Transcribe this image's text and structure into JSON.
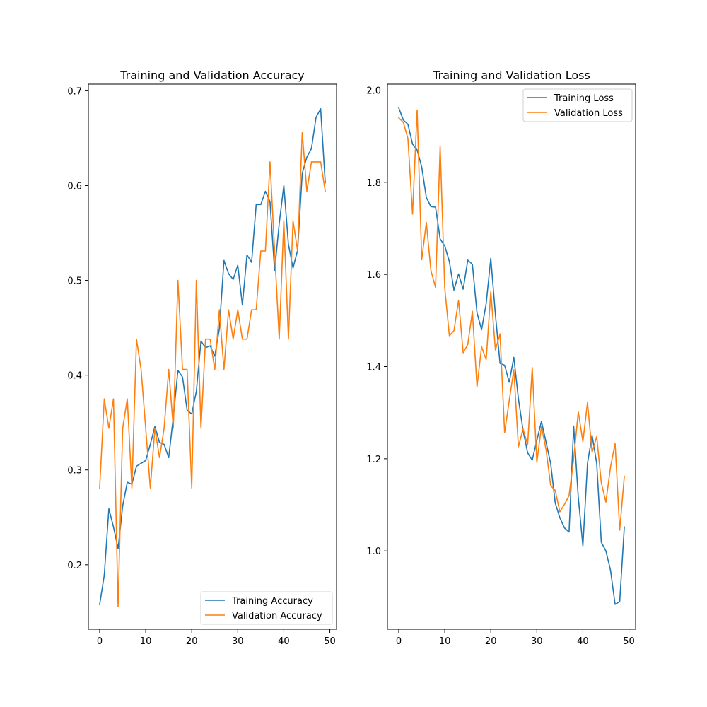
{
  "chart_data": [
    {
      "type": "line",
      "title": "Training and Validation Accuracy",
      "xlabel": "",
      "ylabel": "",
      "xlim": [
        -2.45,
        51.45
      ],
      "ylim": [
        0.132,
        0.707
      ],
      "xticks": [
        0,
        10,
        20,
        30,
        40,
        50
      ],
      "yticks": [
        0.2,
        0.3,
        0.4,
        0.5,
        0.6,
        0.7
      ],
      "xtick_labels": [
        "0",
        "10",
        "20",
        "30",
        "40",
        "50"
      ],
      "ytick_labels": [
        "0.2",
        "0.3",
        "0.4",
        "0.5",
        "0.6",
        "0.7"
      ],
      "grid": false,
      "legend_position": "lower-right",
      "colors": [
        "#1f77b4",
        "#ff7f0e"
      ],
      "x": [
        0,
        1,
        2,
        3,
        4,
        5,
        6,
        7,
        8,
        9,
        10,
        11,
        12,
        13,
        14,
        15,
        16,
        17,
        18,
        19,
        20,
        21,
        22,
        23,
        24,
        25,
        26,
        27,
        28,
        29,
        30,
        31,
        32,
        33,
        34,
        35,
        36,
        37,
        38,
        39,
        40,
        41,
        42,
        43,
        44,
        45,
        46,
        47,
        48,
        49
      ],
      "series": [
        {
          "name": "Training Accuracy",
          "values": [
            0.158,
            0.189,
            0.259,
            0.24,
            0.217,
            0.262,
            0.287,
            0.285,
            0.304,
            0.307,
            0.31,
            0.327,
            0.346,
            0.329,
            0.327,
            0.313,
            0.356,
            0.405,
            0.398,
            0.363,
            0.359,
            0.383,
            0.436,
            0.429,
            0.431,
            0.42,
            0.449,
            0.521,
            0.507,
            0.501,
            0.516,
            0.474,
            0.527,
            0.519,
            0.58,
            0.58,
            0.594,
            0.583,
            0.51,
            0.56,
            0.6,
            0.538,
            0.513,
            0.532,
            0.613,
            0.63,
            0.639,
            0.672,
            0.681,
            0.603
          ]
        },
        {
          "name": "Validation Accuracy",
          "values": [
            0.281,
            0.375,
            0.344,
            0.375,
            0.156,
            0.344,
            0.375,
            0.281,
            0.438,
            0.406,
            0.344,
            0.281,
            0.344,
            0.313,
            0.344,
            0.406,
            0.344,
            0.5,
            0.406,
            0.406,
            0.281,
            0.5,
            0.344,
            0.438,
            0.438,
            0.406,
            0.469,
            0.406,
            0.469,
            0.438,
            0.469,
            0.438,
            0.438,
            0.469,
            0.469,
            0.531,
            0.531,
            0.625,
            0.531,
            0.438,
            0.563,
            0.438,
            0.563,
            0.531,
            0.656,
            0.594,
            0.625,
            0.625,
            0.625,
            0.594
          ]
        }
      ]
    },
    {
      "type": "line",
      "title": "Training and Validation Loss",
      "xlabel": "",
      "ylabel": "",
      "xlim": [
        -2.45,
        51.45
      ],
      "ylim": [
        0.83,
        2.013
      ],
      "xticks": [
        0,
        10,
        20,
        30,
        40,
        50
      ],
      "yticks": [
        1.0,
        1.2,
        1.4,
        1.6,
        1.8,
        2.0
      ],
      "xtick_labels": [
        "0",
        "10",
        "20",
        "30",
        "40",
        "50"
      ],
      "ytick_labels": [
        "1.0",
        "1.2",
        "1.4",
        "1.6",
        "1.8",
        "2.0"
      ],
      "grid": false,
      "legend_position": "upper-right",
      "colors": [
        "#1f77b4",
        "#ff7f0e"
      ],
      "x": [
        0,
        1,
        2,
        3,
        4,
        5,
        6,
        7,
        8,
        9,
        10,
        11,
        12,
        13,
        14,
        15,
        16,
        17,
        18,
        19,
        20,
        21,
        22,
        23,
        24,
        25,
        26,
        27,
        28,
        29,
        30,
        31,
        32,
        33,
        34,
        35,
        36,
        37,
        38,
        39,
        40,
        41,
        42,
        43,
        44,
        45,
        46,
        47,
        48,
        49
      ],
      "series": [
        {
          "name": "Training Loss",
          "values": [
            1.962,
            1.935,
            1.926,
            1.883,
            1.87,
            1.833,
            1.767,
            1.747,
            1.746,
            1.677,
            1.662,
            1.628,
            1.566,
            1.601,
            1.568,
            1.631,
            1.622,
            1.517,
            1.48,
            1.537,
            1.635,
            1.513,
            1.407,
            1.403,
            1.366,
            1.42,
            1.33,
            1.262,
            1.213,
            1.197,
            1.24,
            1.281,
            1.236,
            1.19,
            1.104,
            1.072,
            1.05,
            1.041,
            1.271,
            1.116,
            1.011,
            1.19,
            1.251,
            1.19,
            1.019,
            1.0,
            0.958,
            0.884,
            0.89,
            1.052
          ]
        },
        {
          "name": "Validation Loss",
          "values": [
            1.94,
            1.93,
            1.895,
            1.731,
            1.957,
            1.632,
            1.713,
            1.608,
            1.572,
            1.878,
            1.57,
            1.467,
            1.478,
            1.544,
            1.43,
            1.448,
            1.52,
            1.356,
            1.443,
            1.415,
            1.563,
            1.436,
            1.471,
            1.257,
            1.326,
            1.393,
            1.226,
            1.265,
            1.23,
            1.398,
            1.192,
            1.27,
            1.22,
            1.142,
            1.131,
            1.085,
            1.101,
            1.12,
            1.2,
            1.302,
            1.237,
            1.322,
            1.214,
            1.248,
            1.148,
            1.106,
            1.182,
            1.233,
            1.045,
            1.162
          ]
        }
      ]
    }
  ]
}
